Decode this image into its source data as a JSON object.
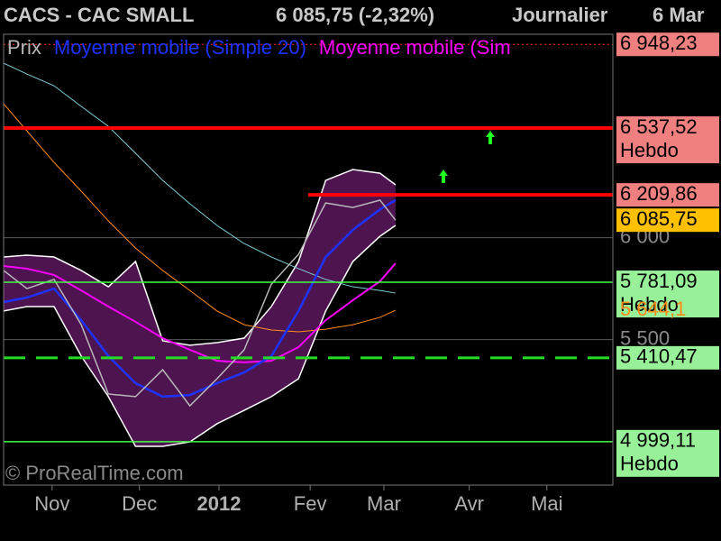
{
  "header": {
    "title": "CACS - CAC SMALL",
    "price_text": "6 085,75 (-2,32%)",
    "period": "Journalier",
    "date": "6 Mar"
  },
  "watermark": "© ProRealTime.com",
  "chart_data": {
    "type": "line",
    "xlim": [
      0,
      157
    ],
    "ylim": [
      4786,
      6989
    ],
    "x": [
      0,
      6,
      13,
      20,
      27,
      34,
      41,
      48,
      55,
      62,
      69,
      76,
      83,
      90,
      97,
      101
    ],
    "xticks": [
      {
        "value": 12.5,
        "label": "Nov"
      },
      {
        "value": 35,
        "label": "Dec"
      },
      {
        "value": 55.5,
        "label": "2012",
        "bold": true
      },
      {
        "value": 79,
        "label": "Fev"
      },
      {
        "value": 98,
        "label": "Mar"
      },
      {
        "value": 120,
        "label": "Avr"
      },
      {
        "value": 140,
        "label": "Mai"
      }
    ],
    "yticks": [
      {
        "value": 6000,
        "label": "6 000"
      },
      {
        "value": 5500,
        "label": "5 500"
      }
    ],
    "band": {
      "upper": [
        5905,
        5914,
        5905,
        5839,
        5759,
        5883,
        5494,
        5472,
        5485,
        5507,
        5662,
        5883,
        6281,
        6334,
        6316,
        6259
      ],
      "lower": [
        5640,
        5662,
        5662,
        5419,
        5220,
        4976,
        4976,
        4998,
        5087,
        5153,
        5220,
        5308,
        5640,
        5883,
        6007,
        6060
      ],
      "fill": "#4e1450",
      "color": "#ffffff"
    },
    "series": [
      {
        "color": "#7fd0d8",
        "values": [
          6856,
          6803,
          6745,
          6644,
          6546,
          6414,
          6281,
          6166,
          6060,
          5971,
          5905,
          5848,
          5795,
          5759,
          5741,
          5728
        ],
        "width": 1
      },
      {
        "color": "#ff8c1a",
        "values": [
          6657,
          6524,
          6369,
          6228,
          6082,
          5949,
          5839,
          5741,
          5640,
          5573,
          5547,
          5538,
          5551,
          5573,
          5609,
          5644.1
        ],
        "width": 1
      },
      {
        "name": "Moyenne mobile (Sim",
        "color": "#ff00ff",
        "values": [
          5861,
          5848,
          5817,
          5741,
          5662,
          5587,
          5507,
          5450,
          5396,
          5388,
          5396,
          5463,
          5595,
          5693,
          5786,
          5874
        ],
        "width": 2
      },
      {
        "name": "Moyenne mobile (Simple 20)",
        "color": "#1e32ff",
        "values": [
          5684,
          5706,
          5750,
          5595,
          5419,
          5286,
          5220,
          5228,
          5286,
          5339,
          5419,
          5640,
          5905,
          6038,
          6139,
          6184
        ],
        "width": 2.5
      },
      {
        "name": "Prix",
        "color": "#b8b8b8",
        "values": [
          5839,
          5750,
          5795,
          5573,
          5233,
          5220,
          5352,
          5175,
          5308,
          5450,
          5772,
          5918,
          6170,
          6148,
          6184,
          6085.75
        ],
        "width": 1.5
      }
    ],
    "levels": [
      {
        "value": 6948.23,
        "label": "6 948,23",
        "color": "#ff2020",
        "style": "dotted",
        "bg": "#f08080"
      },
      {
        "value": 6537.52,
        "label": "6 537,52",
        "tag": "Hebdo",
        "color": "#ff0000",
        "style": "solid",
        "width": 4,
        "bg": "#f08080"
      },
      {
        "value": 6209.86,
        "label": "6 209,86",
        "color": "#ff0000",
        "style": "solid",
        "width": 4,
        "x_start": 78.5,
        "bg": "#f08080"
      },
      {
        "value": 6085.75,
        "label": "6 085,75",
        "bg": "#ffc000"
      },
      {
        "value": 5781.09,
        "label": "5 781,09",
        "tag": "Hebdo",
        "color": "#40ff40",
        "style": "solid",
        "width": 1.5,
        "bg": "#98f098"
      },
      {
        "value": 5644.1,
        "label": "5 644,1",
        "text_color": "#ff8c1a"
      },
      {
        "value": 5410.47,
        "label": "5 410,47",
        "color": "#22dd22",
        "style": "dashed",
        "width": 3,
        "bg": "#98f098"
      },
      {
        "value": 4999.11,
        "label": "4 999,11",
        "tag": "Hebdo",
        "color": "#40ff40",
        "style": "solid",
        "width": 1.5,
        "bg": "#98f098"
      }
    ]
  }
}
